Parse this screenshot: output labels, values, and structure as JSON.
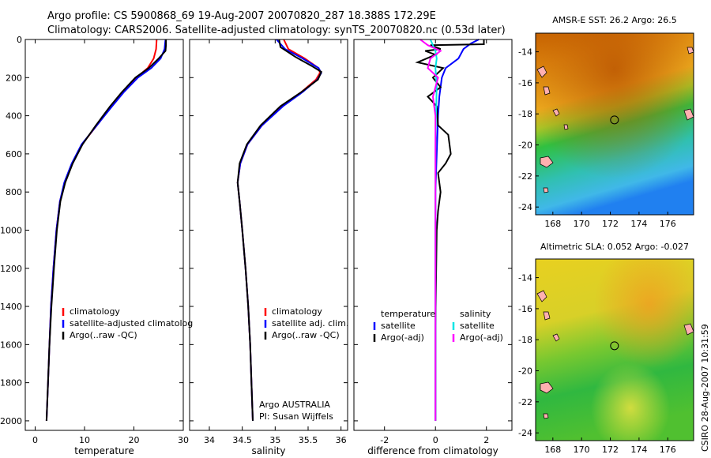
{
  "header": {
    "line1": "Argo profile: CS 5900868_69 19-Aug-2007 20070820_287 18.388S 172.29E",
    "line2": "Climatology: CARS2006. Satellite-adjusted climatology: synTS_20070820.nc (0.53d later)"
  },
  "colors": {
    "red": "#ff0000",
    "blue": "#0000ff",
    "black": "#000000",
    "cyan": "#00e5e5",
    "magenta": "#ff00ff"
  },
  "depth_axis": {
    "ylim": [
      2050,
      0
    ],
    "ticks": [
      0,
      200,
      400,
      600,
      800,
      1000,
      1200,
      1400,
      1600,
      1800,
      2000
    ],
    "tick_labels": [
      "0",
      "200",
      "400",
      "600",
      "800",
      "1000",
      "1200",
      "1400",
      "1600",
      "1800",
      "2000"
    ]
  },
  "chart_data": [
    {
      "id": "temperature",
      "type": "line",
      "xlabel": "temperature",
      "xlim": [
        -2,
        30
      ],
      "x_ticks": [
        0,
        10,
        20,
        30
      ],
      "x_tick_labels": [
        "0",
        "10",
        "20",
        "30"
      ],
      "legend": [
        "climatology",
        "satellite-adjusted climatolog",
        "Argo(..raw -QC)"
      ],
      "legend_placement": "lower-right",
      "series": [
        {
          "key": "clim",
          "color": "#ff0000",
          "points": [
            [
              24.6,
              0
            ],
            [
              24.5,
              50
            ],
            [
              24.0,
              100
            ],
            [
              22.8,
              150
            ],
            [
              20.5,
              200
            ],
            [
              17.8,
              275
            ],
            [
              15.5,
              350
            ],
            [
              12.5,
              450
            ],
            [
              9.5,
              550
            ],
            [
              7.5,
              650
            ],
            [
              6.0,
              750
            ],
            [
              5.0,
              850
            ],
            [
              4.3,
              1000
            ],
            [
              3.7,
              1200
            ],
            [
              3.2,
              1400
            ],
            [
              2.9,
              1600
            ],
            [
              2.6,
              1800
            ],
            [
              2.3,
              2000
            ]
          ]
        },
        {
          "key": "sat",
          "color": "#0000ff",
          "points": [
            [
              26.4,
              0
            ],
            [
              26.2,
              50
            ],
            [
              25.4,
              100
            ],
            [
              23.5,
              150
            ],
            [
              20.8,
              200
            ],
            [
              18.0,
              275
            ],
            [
              15.6,
              350
            ],
            [
              12.5,
              450
            ],
            [
              9.4,
              550
            ],
            [
              7.4,
              650
            ],
            [
              5.9,
              750
            ],
            [
              5.0,
              850
            ],
            [
              4.3,
              1000
            ],
            [
              3.7,
              1200
            ],
            [
              3.2,
              1400
            ],
            [
              2.9,
              1600
            ],
            [
              2.6,
              1800
            ],
            [
              2.3,
              2000
            ]
          ]
        },
        {
          "key": "argo",
          "color": "#000000",
          "points": [
            [
              26.5,
              0
            ],
            [
              26.5,
              30
            ],
            [
              26.4,
              60
            ],
            [
              25.0,
              100
            ],
            [
              23.0,
              150
            ],
            [
              20.3,
              200
            ],
            [
              17.6,
              275
            ],
            [
              15.2,
              350
            ],
            [
              12.3,
              450
            ],
            [
              9.6,
              550
            ],
            [
              7.6,
              650
            ],
            [
              6.1,
              750
            ],
            [
              5.1,
              850
            ],
            [
              4.4,
              1000
            ],
            [
              3.8,
              1200
            ],
            [
              3.3,
              1400
            ],
            [
              2.9,
              1600
            ],
            [
              2.6,
              1800
            ],
            [
              2.3,
              2000
            ]
          ]
        }
      ]
    },
    {
      "id": "salinity",
      "type": "line",
      "xlabel": "salinity",
      "xlim": [
        33.7,
        36.1
      ],
      "x_ticks": [
        34,
        34.5,
        35,
        35.5,
        36
      ],
      "x_tick_labels": [
        "34",
        "34.5",
        "35",
        "35.5",
        "36"
      ],
      "legend": [
        "climatology",
        "satellite adj. clim.",
        "Argo(..raw -QC)"
      ],
      "legend_placement": "lower-right",
      "annotation": [
        "Argo AUSTRALIA",
        "PI: Susan Wijffels"
      ],
      "series": [
        {
          "key": "clim",
          "color": "#ff0000",
          "points": [
            [
              35.13,
              0
            ],
            [
              35.2,
              50
            ],
            [
              35.45,
              100
            ],
            [
              35.66,
              150
            ],
            [
              35.68,
              175
            ],
            [
              35.62,
              210
            ],
            [
              35.4,
              275
            ],
            [
              35.1,
              350
            ],
            [
              34.8,
              450
            ],
            [
              34.58,
              550
            ],
            [
              34.47,
              650
            ],
            [
              34.43,
              750
            ],
            [
              34.46,
              850
            ],
            [
              34.5,
              1000
            ],
            [
              34.55,
              1200
            ],
            [
              34.59,
              1400
            ],
            [
              34.62,
              1600
            ],
            [
              34.64,
              1800
            ],
            [
              34.66,
              2000
            ]
          ]
        },
        {
          "key": "sat",
          "color": "#0000ff",
          "points": [
            [
              35.02,
              0
            ],
            [
              35.15,
              50
            ],
            [
              35.42,
              100
            ],
            [
              35.66,
              150
            ],
            [
              35.7,
              175
            ],
            [
              35.64,
              210
            ],
            [
              35.42,
              275
            ],
            [
              35.12,
              350
            ],
            [
              34.8,
              450
            ],
            [
              34.58,
              550
            ],
            [
              34.47,
              650
            ],
            [
              34.43,
              750
            ],
            [
              34.46,
              850
            ],
            [
              34.5,
              1000
            ],
            [
              34.55,
              1200
            ],
            [
              34.59,
              1400
            ],
            [
              34.62,
              1600
            ],
            [
              34.64,
              1800
            ],
            [
              34.66,
              2000
            ]
          ]
        },
        {
          "key": "argo",
          "color": "#000000",
          "points": [
            [
              35.06,
              0
            ],
            [
              35.08,
              40
            ],
            [
              35.3,
              90
            ],
            [
              35.56,
              140
            ],
            [
              35.7,
              170
            ],
            [
              35.65,
              210
            ],
            [
              35.4,
              275
            ],
            [
              35.08,
              350
            ],
            [
              34.78,
              450
            ],
            [
              34.57,
              550
            ],
            [
              34.46,
              650
            ],
            [
              34.43,
              750
            ],
            [
              34.46,
              850
            ],
            [
              34.5,
              1000
            ],
            [
              34.55,
              1200
            ],
            [
              34.59,
              1400
            ],
            [
              34.62,
              1600
            ],
            [
              34.64,
              1800
            ],
            [
              34.66,
              2000
            ]
          ]
        }
      ]
    },
    {
      "id": "difference",
      "type": "line",
      "xlabel": "difference from climatology",
      "xlim": [
        -3.2,
        3.0
      ],
      "x_ticks": [
        -2,
        0,
        2
      ],
      "x_tick_labels": [
        "-2",
        "0",
        "2"
      ],
      "legend_temperature": [
        "temperature",
        "satellite",
        "Argo(-adj)"
      ],
      "legend_salinity": [
        "salinity",
        "satellite",
        "Argo(-adj)"
      ],
      "legend_placement": "lower-right",
      "series": [
        {
          "key": "t_sat",
          "color": "#0000ff",
          "points": [
            [
              1.7,
              0
            ],
            [
              1.4,
              20
            ],
            [
              1.1,
              50
            ],
            [
              0.9,
              100
            ],
            [
              0.4,
              150
            ],
            [
              0.25,
              200
            ],
            [
              0.15,
              300
            ],
            [
              0.1,
              400
            ],
            [
              0.05,
              600
            ],
            [
              0,
              800
            ],
            [
              0,
              2000
            ]
          ]
        },
        {
          "key": "t_argo",
          "color": "#000000",
          "points": [
            [
              1.9,
              0
            ],
            [
              1.9,
              25
            ],
            [
              -0.2,
              30
            ],
            [
              0.2,
              50
            ],
            [
              -0.4,
              60
            ],
            [
              0.0,
              80
            ],
            [
              -0.7,
              120
            ],
            [
              0.3,
              150
            ],
            [
              -0.1,
              200
            ],
            [
              0.2,
              250
            ],
            [
              -0.3,
              300
            ],
            [
              0.05,
              350
            ],
            [
              0.1,
              450
            ],
            [
              0.5,
              500
            ],
            [
              0.6,
              600
            ],
            [
              0.4,
              650
            ],
            [
              0.1,
              700
            ],
            [
              0.2,
              800
            ],
            [
              0.1,
              900
            ],
            [
              0.05,
              1000
            ],
            [
              0,
              1500
            ],
            [
              0,
              2000
            ]
          ]
        },
        {
          "key": "s_sat",
          "color": "#00e5e5",
          "points": [
            [
              -0.2,
              0
            ],
            [
              0.0,
              60
            ],
            [
              0.05,
              100
            ],
            [
              0.0,
              150
            ],
            [
              0.05,
              250
            ],
            [
              0.02,
              400
            ],
            [
              0.0,
              600
            ],
            [
              0.0,
              2000
            ]
          ]
        },
        {
          "key": "s_argo",
          "color": "#ff00ff",
          "points": [
            [
              -0.6,
              0
            ],
            [
              -0.3,
              30
            ],
            [
              0.2,
              60
            ],
            [
              -0.2,
              100
            ],
            [
              -0.3,
              150
            ],
            [
              0.1,
              200
            ],
            [
              -0.1,
              300
            ],
            [
              0.0,
              400
            ],
            [
              0.0,
              2000
            ]
          ]
        }
      ]
    },
    {
      "id": "sst_map",
      "type": "heatmap",
      "title": "AMSR-E SST: 26.2 Argo: 26.5",
      "xlim": [
        166.8,
        177.8
      ],
      "ylim": [
        -24.5,
        -12.8
      ],
      "x_ticks": [
        168,
        170,
        172,
        174,
        176
      ],
      "x_tick_labels": [
        "168",
        "170",
        "172",
        "174",
        "176"
      ],
      "y_ticks": [
        -14,
        -16,
        -18,
        -20,
        -22,
        -24
      ],
      "y_tick_labels": [
        "-14",
        "-16",
        "-18",
        "-20",
        "-22",
        "-24"
      ],
      "marker": [
        172.29,
        -18.388
      ]
    },
    {
      "id": "sla_map",
      "type": "heatmap",
      "title": "Altimetric SLA: 0.052 Argo: -0.027",
      "xlim": [
        166.8,
        177.8
      ],
      "ylim": [
        -24.5,
        -12.8
      ],
      "x_ticks": [
        168,
        170,
        172,
        174,
        176
      ],
      "x_tick_labels": [
        "168",
        "170",
        "172",
        "174",
        "176"
      ],
      "y_ticks": [
        -14,
        -16,
        -18,
        -20,
        -22,
        -24
      ],
      "y_tick_labels": [
        "-14",
        "-16",
        "-18",
        "-20",
        "-22",
        "-24"
      ],
      "marker": [
        172.29,
        -18.388
      ]
    }
  ],
  "footer": {
    "credit": "CSIRO 28-Aug-2007 10:31:59"
  }
}
